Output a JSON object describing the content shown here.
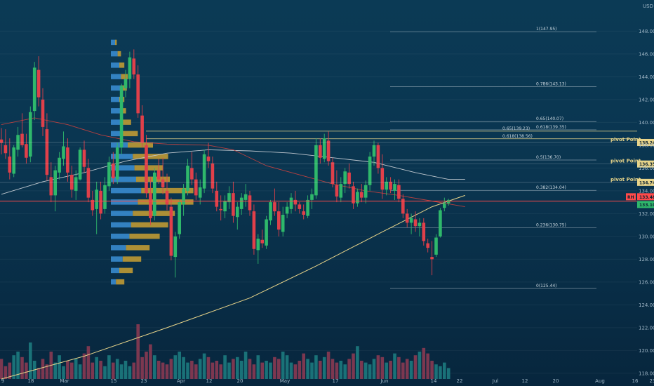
{
  "currency_label": "USD",
  "colors": {
    "up": "#2fb86b",
    "down": "#e0404a",
    "vol_up": "#1d7a7e",
    "vol_down": "#8a3a52",
    "vp_buy": "#3b8fd6",
    "vp_sell": "#c9a033",
    "ma_slow": "#e9d58a",
    "ma_mid": "#c0c8cf",
    "ma_fast": "#b84040",
    "price_line": "#ff4a4a"
  },
  "chart_data": {
    "type": "candlestick",
    "y_range": [
      117.5,
      149.5
    ],
    "y_ticks": [
      "118.00",
      "120.00",
      "122.00",
      "124.00",
      "126.00",
      "128.00",
      "130.00",
      "132.00",
      "134.00",
      "136.00",
      "138.00",
      "140.00",
      "142.00",
      "144.00",
      "146.00",
      "148.00"
    ],
    "x_ticks": [
      "9",
      "18",
      "Mar",
      "15",
      "23",
      "Apr",
      "12",
      "20",
      "May",
      "17",
      "Jun",
      "14",
      "22",
      "Jul",
      "12",
      "20",
      "Aug",
      "16",
      "23"
    ],
    "candles": [
      [
        138.5,
        139.5,
        137.2,
        138.2
      ],
      [
        138.0,
        139.4,
        136.8,
        137.3
      ],
      [
        137.0,
        138.6,
        135.0,
        135.6
      ],
      [
        135.5,
        138.0,
        135.2,
        137.8
      ],
      [
        137.6,
        139.6,
        137.0,
        138.9
      ],
      [
        139.0,
        140.8,
        137.8,
        138.0
      ],
      [
        138.1,
        139.0,
        136.4,
        136.9
      ],
      [
        137.0,
        141.4,
        136.5,
        140.9
      ],
      [
        141.0,
        145.3,
        140.2,
        144.8
      ],
      [
        144.6,
        145.8,
        141.4,
        142.2
      ],
      [
        142.0,
        143.0,
        138.8,
        139.6
      ],
      [
        139.4,
        140.8,
        134.9,
        135.4
      ],
      [
        135.2,
        136.5,
        133.0,
        133.6
      ],
      [
        133.6,
        136.2,
        132.2,
        135.8
      ],
      [
        135.6,
        137.4,
        135.0,
        136.9
      ],
      [
        136.8,
        139.2,
        136.2,
        137.9
      ],
      [
        137.8,
        138.6,
        134.8,
        135.6
      ],
      [
        135.4,
        136.2,
        133.4,
        134.1
      ],
      [
        134.0,
        135.8,
        133.2,
        135.2
      ],
      [
        135.0,
        137.8,
        134.9,
        137.6
      ],
      [
        137.6,
        138.4,
        135.6,
        136.1
      ],
      [
        136.0,
        136.8,
        133.0,
        133.4
      ],
      [
        133.2,
        134.0,
        131.8,
        132.3
      ],
      [
        132.4,
        134.8,
        130.2,
        134.1
      ],
      [
        134.0,
        134.8,
        131.5,
        132.0
      ],
      [
        132.4,
        135.2,
        132.0,
        134.5
      ],
      [
        134.4,
        137.0,
        134.0,
        136.5
      ],
      [
        136.4,
        137.4,
        134.6,
        135.1
      ],
      [
        135.0,
        138.2,
        134.6,
        137.8
      ],
      [
        137.8,
        143.4,
        137.2,
        143.2
      ],
      [
        143.0,
        144.6,
        142.2,
        143.8
      ],
      [
        143.8,
        146.2,
        143.0,
        145.7
      ],
      [
        145.6,
        146.4,
        143.8,
        144.2
      ],
      [
        144.2,
        145.0,
        140.4,
        140.8
      ],
      [
        140.6,
        141.5,
        137.8,
        138.2
      ],
      [
        138.0,
        138.9,
        133.4,
        133.8
      ],
      [
        133.8,
        135.2,
        131.0,
        131.6
      ],
      [
        131.8,
        136.0,
        131.4,
        135.6
      ],
      [
        135.8,
        136.8,
        134.6,
        135.0
      ],
      [
        135.0,
        136.9,
        133.7,
        134.3
      ],
      [
        134.0,
        135.5,
        132.3,
        132.8
      ],
      [
        132.6,
        133.4,
        127.9,
        128.3
      ],
      [
        128.2,
        130.4,
        126.4,
        130.0
      ],
      [
        130.2,
        133.2,
        129.8,
        133.0
      ],
      [
        132.8,
        134.6,
        131.8,
        134.2
      ],
      [
        134.0,
        136.8,
        133.6,
        136.2
      ],
      [
        136.0,
        137.4,
        134.5,
        135.0
      ],
      [
        135.0,
        135.6,
        133.2,
        133.6
      ],
      [
        133.4,
        135.0,
        132.8,
        134.3
      ],
      [
        134.2,
        137.6,
        133.8,
        137.2
      ],
      [
        137.0,
        138.2,
        136.0,
        136.6
      ],
      [
        136.4,
        137.0,
        133.8,
        134.2
      ],
      [
        134.0,
        134.8,
        132.2,
        132.6
      ],
      [
        132.4,
        133.6,
        131.4,
        132.3
      ],
      [
        132.2,
        133.6,
        131.6,
        133.1
      ],
      [
        133.0,
        134.4,
        132.4,
        133.8
      ],
      [
        133.8,
        134.8,
        131.2,
        131.8
      ],
      [
        131.7,
        133.0,
        130.6,
        132.6
      ],
      [
        132.4,
        133.8,
        131.9,
        133.4
      ],
      [
        133.2,
        134.6,
        132.6,
        133.7
      ],
      [
        133.6,
        134.0,
        131.8,
        132.3
      ],
      [
        132.2,
        132.8,
        128.4,
        128.9
      ],
      [
        128.8,
        130.2,
        127.6,
        129.8
      ],
      [
        129.7,
        130.6,
        129.0,
        129.4
      ],
      [
        129.2,
        131.8,
        128.9,
        131.5
      ],
      [
        131.4,
        133.2,
        131.0,
        133.0
      ],
      [
        133.0,
        134.2,
        131.8,
        132.2
      ],
      [
        132.2,
        133.0,
        130.0,
        130.6
      ],
      [
        130.4,
        132.6,
        130.0,
        131.9
      ],
      [
        132.0,
        133.0,
        131.6,
        132.6
      ],
      [
        132.4,
        133.8,
        132.0,
        133.4
      ],
      [
        133.2,
        134.0,
        132.2,
        132.8
      ],
      [
        132.8,
        133.0,
        132.0,
        132.4
      ],
      [
        132.2,
        132.8,
        131.5,
        131.9
      ],
      [
        131.8,
        133.6,
        131.6,
        133.2
      ],
      [
        133.2,
        134.2,
        132.4,
        133.7
      ],
      [
        133.6,
        138.6,
        133.3,
        138.0
      ],
      [
        138.0,
        138.6,
        136.4,
        136.9
      ],
      [
        136.8,
        139.0,
        136.5,
        138.6
      ],
      [
        138.4,
        139.2,
        136.2,
        136.6
      ],
      [
        136.5,
        136.9,
        134.3,
        134.6
      ],
      [
        134.5,
        135.8,
        133.0,
        133.5
      ],
      [
        133.4,
        135.2,
        133.0,
        134.6
      ],
      [
        134.6,
        136.0,
        133.8,
        135.7
      ],
      [
        135.6,
        136.4,
        134.2,
        134.6
      ],
      [
        134.4,
        134.8,
        132.4,
        132.9
      ],
      [
        132.9,
        134.2,
        132.6,
        133.9
      ],
      [
        133.9,
        134.6,
        133.0,
        133.4
      ],
      [
        133.4,
        134.9,
        132.9,
        134.5
      ],
      [
        134.5,
        137.4,
        134.0,
        137.0
      ],
      [
        137.0,
        138.4,
        136.2,
        138.0
      ],
      [
        138.0,
        138.2,
        135.5,
        136.0
      ],
      [
        136.0,
        137.2,
        133.3,
        134.1
      ],
      [
        134.1,
        135.2,
        133.6,
        134.8
      ],
      [
        134.8,
        135.2,
        133.8,
        134.1
      ],
      [
        134.0,
        135.0,
        133.2,
        134.6
      ],
      [
        134.5,
        135.0,
        133.0,
        133.3
      ],
      [
        133.3,
        133.7,
        131.6,
        132.0
      ],
      [
        132.0,
        132.4,
        130.8,
        131.2
      ],
      [
        131.2,
        132.0,
        130.2,
        131.6
      ],
      [
        131.5,
        132.2,
        130.4,
        130.9
      ],
      [
        130.9,
        131.6,
        130.0,
        131.2
      ],
      [
        131.2,
        131.6,
        129.2,
        129.6
      ],
      [
        129.4,
        129.8,
        128.6,
        129.0
      ],
      [
        128.2,
        129.6,
        126.6,
        128.0
      ],
      [
        128.4,
        130.2,
        128.2,
        129.9
      ],
      [
        130.0,
        132.5,
        129.9,
        132.3
      ],
      [
        132.5,
        133.4,
        132.2,
        132.9
      ],
      [
        132.9,
        133.3,
        132.7,
        133.2
      ]
    ],
    "volume": [
      22,
      14,
      18,
      26,
      30,
      24,
      18,
      40,
      20,
      12,
      22,
      16,
      30,
      18,
      26,
      14,
      20,
      18,
      22,
      16,
      28,
      36,
      18,
      24,
      20,
      14,
      26,
      18,
      22,
      16,
      20,
      14,
      18,
      60,
      24,
      30,
      38,
      26,
      20,
      18,
      16,
      22,
      26,
      30,
      24,
      18,
      20,
      16,
      22,
      28,
      24,
      18,
      20,
      16,
      26,
      18,
      22,
      24,
      20,
      30,
      22,
      16,
      26,
      18,
      20,
      18,
      24,
      22,
      30,
      26,
      18,
      16,
      20,
      28,
      22,
      18,
      26,
      20,
      24,
      30,
      22,
      18,
      20,
      16,
      22,
      28,
      36,
      20,
      18,
      16,
      22,
      26,
      24,
      18,
      20,
      28,
      24,
      18,
      22,
      20,
      26,
      30,
      34,
      28,
      20,
      16,
      14,
      18,
      12,
      10
    ],
    "volume_profile": [
      [
        147.0,
        0.05,
        0.02
      ],
      [
        146.0,
        0.08,
        0.04
      ],
      [
        145.0,
        0.1,
        0.06
      ],
      [
        144.0,
        0.12,
        0.08
      ],
      [
        143.0,
        0.12,
        0.07
      ],
      [
        142.0,
        0.1,
        0.06
      ],
      [
        141.0,
        0.11,
        0.07
      ],
      [
        140.0,
        0.12,
        0.12
      ],
      [
        139.0,
        0.14,
        0.18
      ],
      [
        138.0,
        0.2,
        0.3
      ],
      [
        137.0,
        0.26,
        0.42
      ],
      [
        136.0,
        0.28,
        0.34
      ],
      [
        135.0,
        0.3,
        0.4
      ],
      [
        134.0,
        0.36,
        0.62
      ],
      [
        133.0,
        0.32,
        0.66
      ],
      [
        132.0,
        0.26,
        0.5
      ],
      [
        131.0,
        0.24,
        0.44
      ],
      [
        130.0,
        0.22,
        0.36
      ],
      [
        129.0,
        0.18,
        0.28
      ],
      [
        128.0,
        0.14,
        0.22
      ],
      [
        127.0,
        0.1,
        0.16
      ],
      [
        126.0,
        0.06,
        0.1
      ]
    ],
    "ma_slow": [
      [
        0,
        117.5
      ],
      [
        20,
        119.5
      ],
      [
        40,
        122.0
      ],
      [
        60,
        124.6
      ],
      [
        76,
        127.4
      ],
      [
        92,
        130.4
      ],
      [
        104,
        132.6
      ],
      [
        112,
        133.6
      ]
    ],
    "ma_mid": [
      [
        0,
        133.7
      ],
      [
        10,
        134.8
      ],
      [
        20,
        135.6
      ],
      [
        30,
        136.6
      ],
      [
        40,
        137.3
      ],
      [
        50,
        137.6
      ],
      [
        60,
        137.5
      ],
      [
        70,
        137.3
      ],
      [
        80,
        136.9
      ],
      [
        90,
        136.5
      ],
      [
        100,
        135.6
      ],
      [
        108,
        135.0
      ],
      [
        112,
        135.0
      ]
    ],
    "ma_fast": [
      [
        0,
        139.8
      ],
      [
        8,
        140.4
      ],
      [
        16,
        139.8
      ],
      [
        24,
        138.9
      ],
      [
        32,
        138.3
      ],
      [
        40,
        138.1
      ],
      [
        50,
        138.0
      ],
      [
        56,
        137.6
      ],
      [
        64,
        136.2
      ],
      [
        72,
        135.4
      ],
      [
        80,
        134.6
      ],
      [
        88,
        134.0
      ],
      [
        96,
        133.6
      ],
      [
        104,
        133.1
      ],
      [
        112,
        132.6
      ]
    ],
    "fib_levels": [
      {
        "label": "1(147.95)",
        "value": 147.95
      },
      {
        "label": "0.786(143.13)",
        "value": 143.13
      },
      {
        "label": "0.65(140.07)",
        "value": 140.07
      },
      {
        "label": "0.618(139.35)",
        "value": 139.35
      },
      {
        "label": "0.65(139.23)",
        "value": 139.23,
        "highlight": true
      },
      {
        "label": "0.618(138.56)",
        "value": 138.56,
        "highlight": true
      },
      {
        "label": "0.5(136.70)",
        "value": 136.7
      },
      {
        "label": "0.382(134.04)",
        "value": 134.04
      },
      {
        "label": "0.236(130.75)",
        "value": 130.75
      },
      {
        "label": "0(125.44)",
        "value": 125.44
      }
    ],
    "pivots": [
      {
        "label": "pivot Point",
        "value": 138.24,
        "tag": "138.24"
      },
      {
        "label": "pivot Point",
        "value": 136.35,
        "tag": "136.35"
      },
      {
        "label": "pivot Point",
        "value": 134.74,
        "tag": "134.74"
      }
    ],
    "price_tags": [
      {
        "label": "133.48",
        "value": 133.48,
        "color": "#ff4a4a",
        "prefix": "RH"
      },
      {
        "label": "133.10",
        "value": 132.8,
        "color": "#2fb86b"
      }
    ],
    "current_price": 133.1
  }
}
